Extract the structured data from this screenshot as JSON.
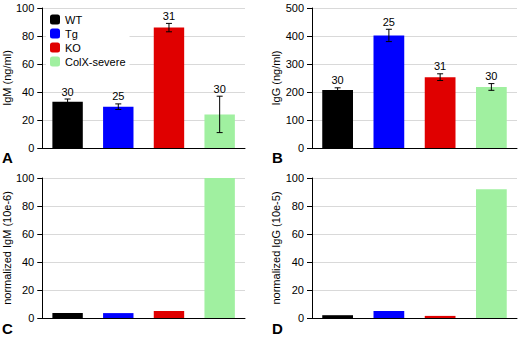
{
  "chart_data": [
    {
      "type": "bar",
      "panel": "A",
      "y_label": "IgM (ng/ml)",
      "ylim": [
        0,
        100
      ],
      "yticks": [
        0,
        20,
        40,
        60,
        80,
        100
      ],
      "grid": true,
      "tick_labels": "y",
      "legend": "upper left",
      "series": [
        {
          "name": "WT",
          "color": "#000000",
          "values": [
            33
          ],
          "errors": [
            2
          ],
          "n": [
            30
          ]
        },
        {
          "name": "Tg",
          "color": "#0000ff",
          "values": [
            29.5
          ],
          "errors": [
            2
          ],
          "n": [
            25
          ]
        },
        {
          "name": "KO",
          "color": "#e00000",
          "values": [
            86
          ],
          "errors": [
            3
          ],
          "n": [
            31
          ]
        },
        {
          "name": "ColX-severe",
          "color": "#a0f0a0",
          "values": [
            24
          ],
          "errors": [
            13
          ],
          "n": [
            30
          ]
        }
      ]
    },
    {
      "type": "bar",
      "panel": "B",
      "y_label": "IgG (ng/ml)",
      "ylim": [
        0,
        500
      ],
      "yticks": [
        0,
        100,
        200,
        300,
        400,
        500
      ],
      "grid": true,
      "tick_labels": "y",
      "series": [
        {
          "color": "#000000",
          "values": [
            207
          ],
          "errors": [
            8
          ],
          "n": [
            30
          ]
        },
        {
          "color": "#0000ff",
          "values": [
            402
          ],
          "errors": [
            22
          ],
          "n": [
            25
          ]
        },
        {
          "color": "#e00000",
          "values": [
            253
          ],
          "errors": [
            12
          ],
          "n": [
            31
          ]
        },
        {
          "color": "#a0f0a0",
          "values": [
            218
          ],
          "errors": [
            12
          ],
          "n": [
            30
          ]
        }
      ]
    },
    {
      "type": "bar",
      "panel": "C",
      "y_label": "normalized IgM (10e-6)",
      "ylim": [
        0,
        100
      ],
      "yticks": [
        0,
        20,
        40,
        60,
        80,
        100
      ],
      "grid": true,
      "tick_labels": "y",
      "series": [
        {
          "color": "#000000",
          "values": [
            3.5
          ]
        },
        {
          "color": "#0000ff",
          "values": [
            3.5
          ]
        },
        {
          "color": "#e00000",
          "values": [
            5
          ]
        },
        {
          "color": "#a0f0a0",
          "values": [
            100
          ]
        }
      ]
    },
    {
      "type": "bar",
      "panel": "D",
      "y_label": "normalized IgG (10e-5)",
      "ylim": [
        0,
        100
      ],
      "yticks": [
        0,
        20,
        40,
        60,
        80,
        100
      ],
      "grid": true,
      "tick_labels": "y",
      "series": [
        {
          "color": "#000000",
          "values": [
            2
          ]
        },
        {
          "color": "#0000ff",
          "values": [
            5
          ]
        },
        {
          "color": "#e00000",
          "values": [
            1.5
          ]
        },
        {
          "color": "#a0f0a0",
          "values": [
            92
          ]
        }
      ]
    }
  ]
}
